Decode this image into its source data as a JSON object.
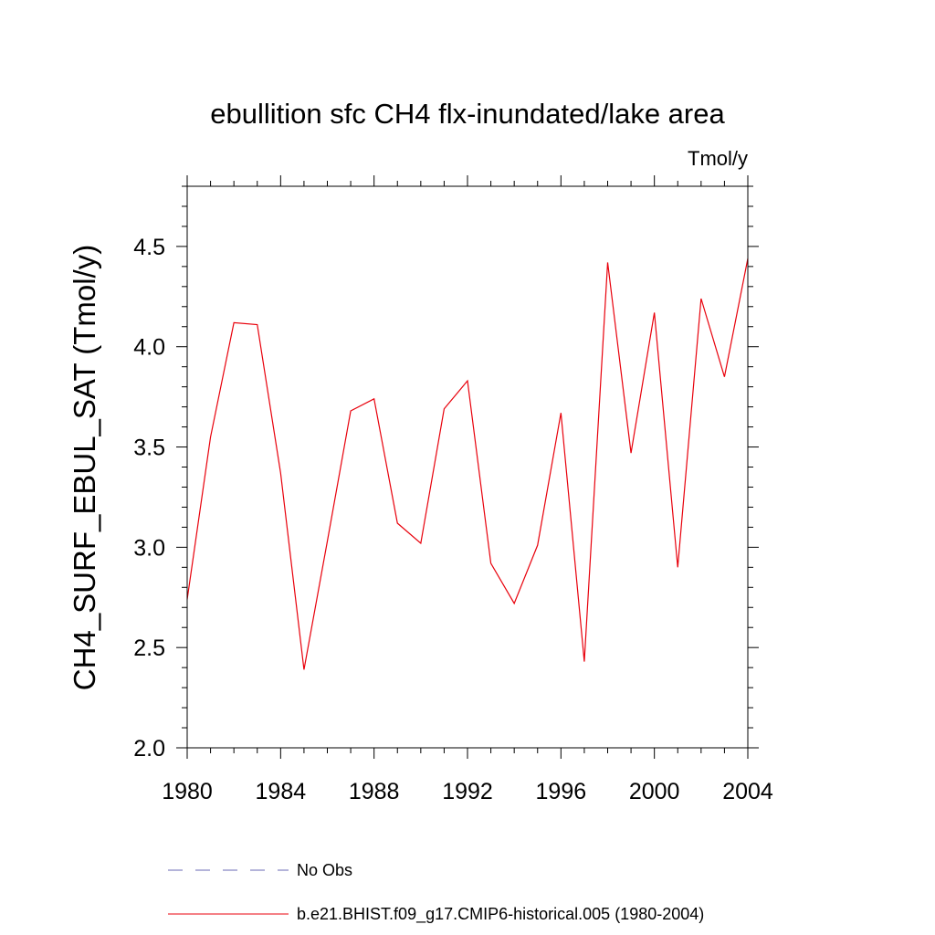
{
  "chart_data": {
    "type": "line",
    "title": "ebullition sfc CH4 flx-inundated/lake area",
    "units": "Tmol/y",
    "ylabel": "CH4_SURF_EBUL_SAT  (Tmol/y)",
    "xlabel": "",
    "xlim": [
      1980,
      2004
    ],
    "ylim": [
      2.0,
      4.8
    ],
    "x_ticks": [
      1980,
      1984,
      1988,
      1992,
      1996,
      2000,
      2004
    ],
    "x_tick_labels": [
      "1980",
      "1984",
      "1988",
      "1992",
      "1996",
      "2000",
      "2004"
    ],
    "y_ticks": [
      2.0,
      2.5,
      3.0,
      3.5,
      4.0,
      4.5
    ],
    "y_tick_labels": [
      "2.0",
      "2.5",
      "3.0",
      "3.5",
      "4.0",
      "4.5"
    ],
    "series": [
      {
        "name": "No Obs",
        "style": "dashed",
        "color": "#6a6ab4",
        "x": [],
        "values": []
      },
      {
        "name": "b.e21.BHIST.f09_g17.CMIP6-historical.005 (1980-2004)",
        "style": "solid",
        "color": "#e8000b",
        "x": [
          1980,
          1981,
          1982,
          1983,
          1984,
          1985,
          1986,
          1987,
          1988,
          1989,
          1990,
          1991,
          1992,
          1993,
          1994,
          1995,
          1996,
          1997,
          1998,
          1999,
          2000,
          2001,
          2002,
          2003,
          2004
        ],
        "values": [
          2.74,
          3.55,
          4.12,
          4.11,
          3.37,
          2.39,
          3.03,
          3.68,
          3.74,
          3.12,
          3.02,
          3.69,
          3.83,
          2.92,
          2.72,
          3.01,
          3.67,
          2.43,
          4.42,
          3.47,
          4.17,
          2.9,
          4.24,
          3.85,
          4.44
        ]
      }
    ]
  }
}
